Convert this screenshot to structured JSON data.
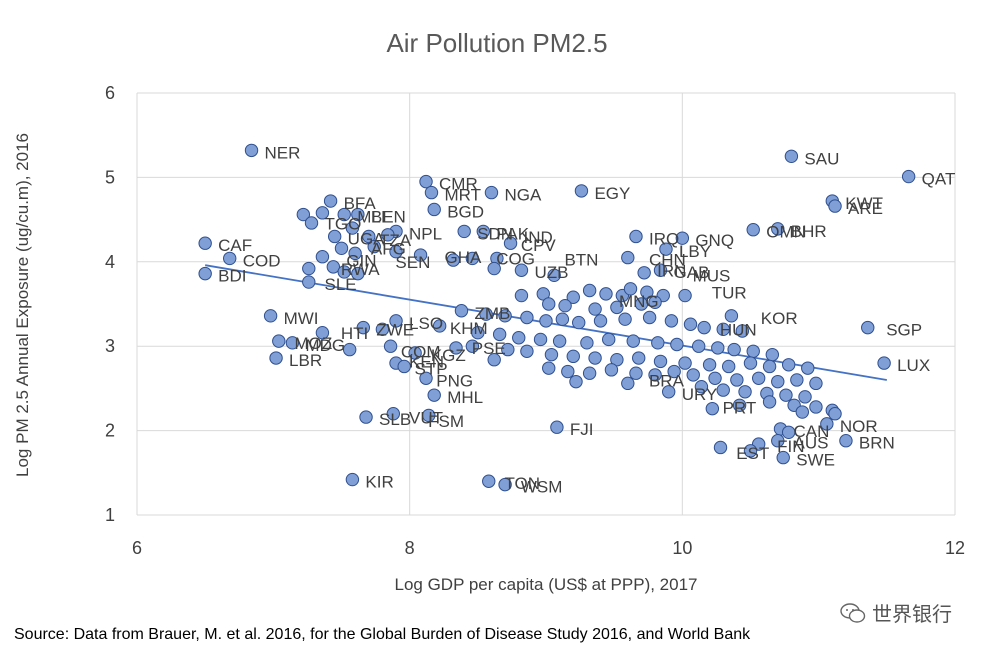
{
  "chart_data": {
    "type": "scatter",
    "title": "Air Pollution PM2.5",
    "xlabel": "Log GDP per capita (US$ at PPP), 2017",
    "ylabel": "Log PM 2.5 Annual Exposure (ug/cu.m), 2016",
    "xlim": [
      6,
      12
    ],
    "ylim": [
      1,
      6
    ],
    "xticks": [
      6,
      8,
      10,
      12
    ],
    "yticks": [
      1,
      2,
      3,
      4,
      5,
      6
    ],
    "grid": true,
    "marker_color": "#7f9fd6",
    "marker_edge": "#2f4f8f",
    "trendline": {
      "x": [
        6.5,
        11.5
      ],
      "y": [
        3.96,
        2.6
      ],
      "color": "#4472c4"
    },
    "labeled_points": [
      {
        "label": "NER",
        "x": 6.84,
        "y": 5.32
      },
      {
        "label": "SAU",
        "x": 10.8,
        "y": 5.25
      },
      {
        "label": "QAT",
        "x": 11.66,
        "y": 5.01
      },
      {
        "label": "CMR",
        "x": 8.12,
        "y": 4.95
      },
      {
        "label": "MRT",
        "x": 8.16,
        "y": 4.82
      },
      {
        "label": "NGA",
        "x": 8.6,
        "y": 4.82
      },
      {
        "label": "EGY",
        "x": 9.26,
        "y": 4.84
      },
      {
        "label": "BFA",
        "x": 7.42,
        "y": 4.72
      },
      {
        "label": "KWT",
        "x": 11.1,
        "y": 4.72
      },
      {
        "label": "ARE",
        "x": 11.12,
        "y": 4.66
      },
      {
        "label": "BGD",
        "x": 8.18,
        "y": 4.62
      },
      {
        "label": "BEN",
        "x": 7.62,
        "y": 4.56
      },
      {
        "label": "MLI",
        "x": 7.52,
        "y": 4.56
      },
      {
        "label": "TGO",
        "x": 7.28,
        "y": 4.48
      },
      {
        "label": "BHR",
        "x": 10.7,
        "y": 4.39
      },
      {
        "label": "OMN",
        "x": 10.52,
        "y": 4.38
      },
      {
        "label": "NPL",
        "x": 7.9,
        "y": 4.36
      },
      {
        "label": "SDN",
        "x": 8.4,
        "y": 4.36
      },
      {
        "label": "PAK",
        "x": 8.54,
        "y": 4.36
      },
      {
        "label": "IND",
        "x": 8.74,
        "y": 4.32
      },
      {
        "label": "UGA",
        "x": 7.45,
        "y": 4.3
      },
      {
        "label": "IRQ",
        "x": 9.66,
        "y": 4.3
      },
      {
        "label": "GNQ",
        "x": 10.0,
        "y": 4.28
      },
      {
        "label": "TZA",
        "x": 7.68,
        "y": 4.28
      },
      {
        "label": "AFG",
        "x": 7.62,
        "y": 4.18
      },
      {
        "label": "CPV",
        "x": 8.72,
        "y": 4.22
      },
      {
        "label": "LBY",
        "x": 9.88,
        "y": 4.15
      },
      {
        "label": "CAF",
        "x": 6.5,
        "y": 4.22
      },
      {
        "label": "COD",
        "x": 6.68,
        "y": 4.04
      },
      {
        "label": "GHA",
        "x": 8.16,
        "y": 4.08
      },
      {
        "label": "COG",
        "x": 8.54,
        "y": 4.06
      },
      {
        "label": "BTN",
        "x": 9.04,
        "y": 4.05
      },
      {
        "label": "CHN",
        "x": 9.66,
        "y": 4.05
      },
      {
        "label": "GIN",
        "x": 7.44,
        "y": 4.04
      },
      {
        "label": "SEN",
        "x": 7.8,
        "y": 4.02
      },
      {
        "label": "GAB",
        "x": 9.84,
        "y": 3.9
      },
      {
        "label": "IRN",
        "x": 9.72,
        "y": 3.92
      },
      {
        "label": "RWA",
        "x": 7.4,
        "y": 3.94
      },
      {
        "label": "UZB",
        "x": 8.82,
        "y": 3.9
      },
      {
        "label": "MUS",
        "x": 9.98,
        "y": 3.86
      },
      {
        "label": "SLE",
        "x": 7.28,
        "y": 3.76
      },
      {
        "label": "BDI",
        "x": 6.5,
        "y": 3.86
      },
      {
        "label": "TUR",
        "x": 10.12,
        "y": 3.66
      },
      {
        "label": "ZMB",
        "x": 8.38,
        "y": 3.42
      },
      {
        "label": "MNG",
        "x": 9.44,
        "y": 3.56
      },
      {
        "label": "MWI",
        "x": 6.98,
        "y": 3.36
      },
      {
        "label": "KOR",
        "x": 10.48,
        "y": 3.36
      },
      {
        "label": "SGP",
        "x": 11.4,
        "y": 3.22
      },
      {
        "label": "LSO",
        "x": 7.9,
        "y": 3.3
      },
      {
        "label": "KHM",
        "x": 8.2,
        "y": 3.24
      },
      {
        "label": "HUN",
        "x": 10.18,
        "y": 3.22
      },
      {
        "label": "HTI",
        "x": 7.4,
        "y": 3.18
      },
      {
        "label": "ZWE",
        "x": 7.66,
        "y": 3.22
      },
      {
        "label": "MOZ",
        "x": 7.06,
        "y": 3.06
      },
      {
        "label": "MDG",
        "x": 7.14,
        "y": 3.04
      },
      {
        "label": "LUX",
        "x": 11.48,
        "y": 2.8
      },
      {
        "label": "LBR",
        "x": 7.02,
        "y": 2.86
      },
      {
        "label": "COM",
        "x": 7.84,
        "y": 2.96
      },
      {
        "label": "KGZ",
        "x": 8.06,
        "y": 2.92
      },
      {
        "label": "PSE",
        "x": 8.36,
        "y": 3.0
      },
      {
        "label": "KEN",
        "x": 7.9,
        "y": 2.84
      },
      {
        "label": "STP",
        "x": 7.94,
        "y": 2.76
      },
      {
        "label": "PNG",
        "x": 8.1,
        "y": 2.62
      },
      {
        "label": "BRA",
        "x": 9.66,
        "y": 2.62
      },
      {
        "label": "MHL",
        "x": 8.18,
        "y": 2.42
      },
      {
        "label": "URY",
        "x": 9.9,
        "y": 2.46
      },
      {
        "label": "PRT",
        "x": 10.2,
        "y": 2.3
      },
      {
        "label": "SLB",
        "x": 7.68,
        "y": 2.16
      },
      {
        "label": "VUT",
        "x": 7.9,
        "y": 2.18
      },
      {
        "label": "FSM",
        "x": 8.04,
        "y": 2.14
      },
      {
        "label": "FJI",
        "x": 9.08,
        "y": 2.04
      },
      {
        "label": "NOR",
        "x": 11.06,
        "y": 2.08
      },
      {
        "label": "CAN",
        "x": 10.72,
        "y": 2.02
      },
      {
        "label": "AUS",
        "x": 10.72,
        "y": 1.88
      },
      {
        "label": "BRN",
        "x": 11.2,
        "y": 1.88
      },
      {
        "label": "FIN",
        "x": 10.6,
        "y": 1.84
      },
      {
        "label": "EST",
        "x": 10.3,
        "y": 1.76
      },
      {
        "label": "SWE",
        "x": 10.74,
        "y": 1.68
      },
      {
        "label": "KIR",
        "x": 7.58,
        "y": 1.42
      },
      {
        "label": "TON",
        "x": 8.6,
        "y": 1.4
      },
      {
        "label": "WSM",
        "x": 8.72,
        "y": 1.36
      }
    ],
    "points": [
      [
        6.84,
        5.32
      ],
      [
        10.8,
        5.25
      ],
      [
        11.66,
        5.01
      ],
      [
        8.12,
        4.95
      ],
      [
        8.16,
        4.82
      ],
      [
        9.26,
        4.84
      ],
      [
        8.6,
        4.82
      ],
      [
        7.42,
        4.72
      ],
      [
        11.1,
        4.72
      ],
      [
        11.12,
        4.66
      ],
      [
        8.18,
        4.62
      ],
      [
        7.22,
        4.56
      ],
      [
        7.36,
        4.58
      ],
      [
        7.52,
        4.56
      ],
      [
        7.62,
        4.56
      ],
      [
        7.28,
        4.46
      ],
      [
        7.58,
        4.4
      ],
      [
        10.7,
        4.39
      ],
      [
        10.52,
        4.38
      ],
      [
        8.4,
        4.36
      ],
      [
        8.54,
        4.36
      ],
      [
        7.9,
        4.36
      ],
      [
        7.45,
        4.3
      ],
      [
        7.7,
        4.3
      ],
      [
        7.84,
        4.32
      ],
      [
        9.66,
        4.3
      ],
      [
        10.0,
        4.28
      ],
      [
        8.74,
        4.22
      ],
      [
        6.5,
        4.22
      ],
      [
        7.5,
        4.16
      ],
      [
        7.74,
        4.18
      ],
      [
        7.9,
        4.12
      ],
      [
        8.08,
        4.08
      ],
      [
        8.32,
        4.02
      ],
      [
        8.46,
        4.04
      ],
      [
        8.64,
        4.04
      ],
      [
        8.82,
        3.9
      ],
      [
        9.6,
        4.05
      ],
      [
        9.88,
        4.15
      ],
      [
        6.68,
        4.04
      ],
      [
        7.36,
        4.06
      ],
      [
        7.6,
        4.1
      ],
      [
        7.44,
        3.94
      ],
      [
        7.26,
        3.92
      ],
      [
        7.52,
        3.88
      ],
      [
        7.62,
        3.86
      ],
      [
        9.84,
        3.9
      ],
      [
        9.72,
        3.87
      ],
      [
        8.62,
        3.92
      ],
      [
        9.06,
        3.84
      ],
      [
        7.26,
        3.76
      ],
      [
        6.5,
        3.86
      ],
      [
        8.82,
        3.6
      ],
      [
        8.98,
        3.62
      ],
      [
        9.2,
        3.58
      ],
      [
        9.32,
        3.66
      ],
      [
        9.44,
        3.62
      ],
      [
        9.56,
        3.6
      ],
      [
        9.62,
        3.68
      ],
      [
        9.74,
        3.64
      ],
      [
        9.86,
        3.6
      ],
      [
        9.02,
        3.5
      ],
      [
        9.14,
        3.48
      ],
      [
        9.36,
        3.44
      ],
      [
        9.52,
        3.46
      ],
      [
        9.7,
        3.5
      ],
      [
        9.8,
        3.52
      ],
      [
        10.02,
        3.6
      ],
      [
        10.36,
        3.36
      ],
      [
        8.38,
        3.42
      ],
      [
        8.56,
        3.38
      ],
      [
        8.7,
        3.36
      ],
      [
        8.86,
        3.34
      ],
      [
        9.0,
        3.3
      ],
      [
        9.12,
        3.32
      ],
      [
        9.24,
        3.28
      ],
      [
        9.4,
        3.3
      ],
      [
        9.58,
        3.32
      ],
      [
        9.76,
        3.34
      ],
      [
        9.92,
        3.3
      ],
      [
        10.06,
        3.26
      ],
      [
        10.16,
        3.22
      ],
      [
        10.3,
        3.2
      ],
      [
        10.44,
        3.18
      ],
      [
        11.36,
        3.22
      ],
      [
        6.98,
        3.36
      ],
      [
        7.9,
        3.3
      ],
      [
        8.22,
        3.24
      ],
      [
        7.36,
        3.16
      ],
      [
        7.66,
        3.22
      ],
      [
        7.8,
        3.2
      ],
      [
        8.5,
        3.16
      ],
      [
        8.66,
        3.14
      ],
      [
        8.8,
        3.1
      ],
      [
        8.96,
        3.08
      ],
      [
        9.1,
        3.06
      ],
      [
        9.3,
        3.04
      ],
      [
        9.46,
        3.08
      ],
      [
        9.64,
        3.06
      ],
      [
        9.82,
        3.04
      ],
      [
        9.96,
        3.02
      ],
      [
        10.12,
        3.0
      ],
      [
        10.26,
        2.98
      ],
      [
        10.38,
        2.96
      ],
      [
        10.52,
        2.94
      ],
      [
        10.66,
        2.9
      ],
      [
        7.04,
        3.06
      ],
      [
        7.14,
        3.04
      ],
      [
        7.56,
        2.96
      ],
      [
        7.86,
        3.0
      ],
      [
        8.04,
        2.92
      ],
      [
        8.34,
        2.98
      ],
      [
        8.46,
        3.0
      ],
      [
        8.72,
        2.96
      ],
      [
        8.86,
        2.94
      ],
      [
        9.04,
        2.9
      ],
      [
        9.2,
        2.88
      ],
      [
        9.36,
        2.86
      ],
      [
        9.52,
        2.84
      ],
      [
        9.68,
        2.86
      ],
      [
        9.84,
        2.82
      ],
      [
        10.02,
        2.8
      ],
      [
        10.2,
        2.78
      ],
      [
        10.34,
        2.76
      ],
      [
        10.5,
        2.8
      ],
      [
        10.64,
        2.76
      ],
      [
        10.78,
        2.78
      ],
      [
        10.92,
        2.74
      ],
      [
        7.02,
        2.86
      ],
      [
        7.9,
        2.8
      ],
      [
        7.96,
        2.76
      ],
      [
        8.62,
        2.84
      ],
      [
        9.02,
        2.74
      ],
      [
        9.16,
        2.7
      ],
      [
        9.32,
        2.68
      ],
      [
        9.48,
        2.72
      ],
      [
        9.66,
        2.68
      ],
      [
        9.8,
        2.66
      ],
      [
        9.94,
        2.7
      ],
      [
        10.08,
        2.66
      ],
      [
        10.24,
        2.62
      ],
      [
        10.4,
        2.6
      ],
      [
        10.56,
        2.62
      ],
      [
        10.7,
        2.58
      ],
      [
        10.84,
        2.6
      ],
      [
        10.98,
        2.56
      ],
      [
        11.48,
        2.8
      ],
      [
        8.12,
        2.62
      ],
      [
        9.22,
        2.58
      ],
      [
        9.6,
        2.56
      ],
      [
        10.14,
        2.52
      ],
      [
        10.3,
        2.48
      ],
      [
        10.46,
        2.46
      ],
      [
        10.62,
        2.44
      ],
      [
        10.76,
        2.42
      ],
      [
        10.9,
        2.4
      ],
      [
        8.18,
        2.42
      ],
      [
        9.9,
        2.46
      ],
      [
        10.42,
        2.3
      ],
      [
        10.64,
        2.34
      ],
      [
        10.82,
        2.3
      ],
      [
        10.98,
        2.28
      ],
      [
        11.1,
        2.24
      ],
      [
        10.22,
        2.26
      ],
      [
        10.88,
        2.22
      ],
      [
        11.12,
        2.2
      ],
      [
        7.68,
        2.16
      ],
      [
        7.88,
        2.2
      ],
      [
        8.14,
        2.18
      ],
      [
        9.08,
        2.04
      ],
      [
        11.06,
        2.08
      ],
      [
        10.72,
        2.02
      ],
      [
        10.78,
        1.98
      ],
      [
        10.56,
        1.84
      ],
      [
        10.7,
        1.88
      ],
      [
        11.2,
        1.88
      ],
      [
        10.28,
        1.8
      ],
      [
        10.5,
        1.76
      ],
      [
        10.74,
        1.68
      ],
      [
        7.58,
        1.42
      ],
      [
        8.58,
        1.4
      ],
      [
        8.7,
        1.36
      ]
    ]
  },
  "source_text": "Source: Data from Brauer, M. et al. 2016, for the Global Burden of Disease Study 2016, and World Bank",
  "watermark": {
    "text": "世界银行",
    "icon": "wechat-icon"
  }
}
